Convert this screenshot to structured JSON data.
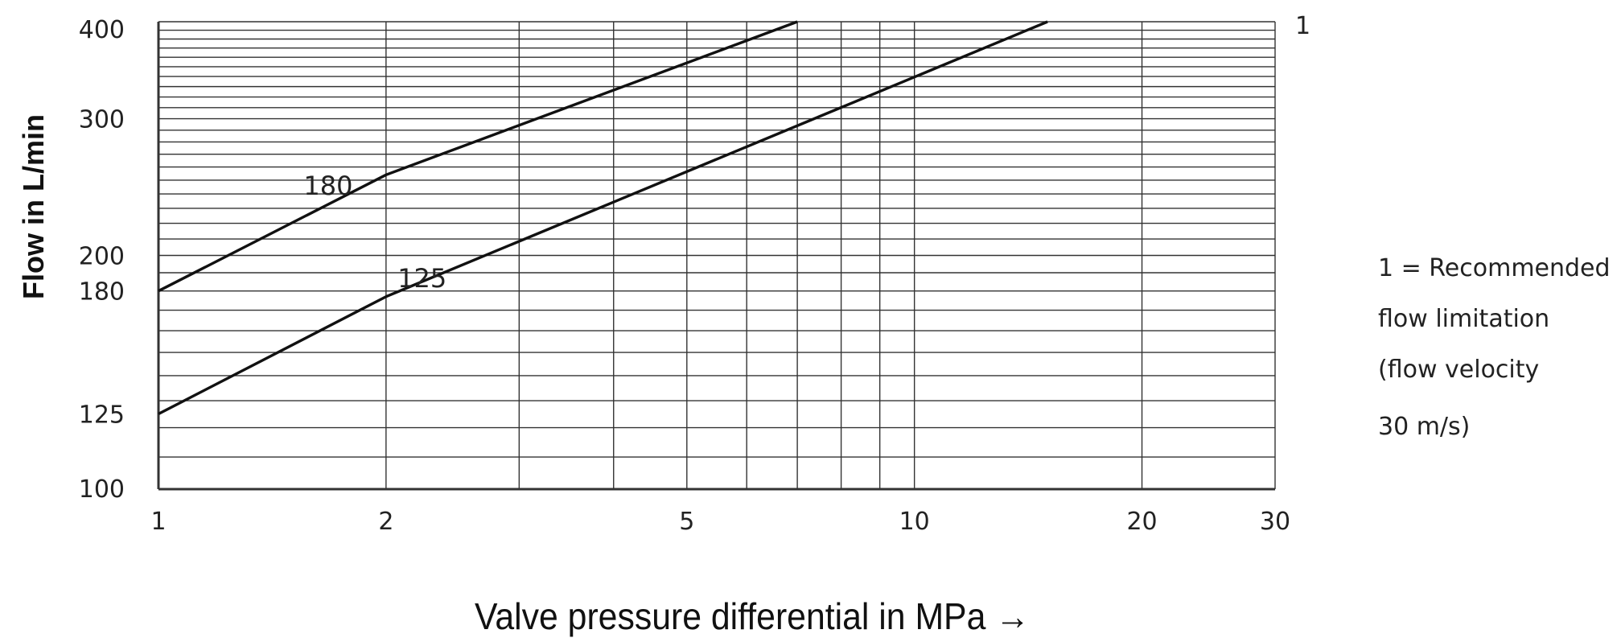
{
  "chart_data": {
    "type": "line",
    "title": "",
    "xlabel": "Valve pressure differential in MPa →",
    "ylabel": "Flow in  L/min",
    "x_scale": "log",
    "y_scale": "log",
    "xlim": [
      1,
      30
    ],
    "ylim": [
      100,
      400
    ],
    "x_ticks": [
      1,
      2,
      5,
      10,
      20,
      30
    ],
    "x_tick_labels": [
      "1",
      "2",
      "5",
      "10",
      "20",
      "30"
    ],
    "y_ticks": [
      100,
      125,
      180,
      200,
      300,
      400
    ],
    "y_tick_labels": [
      "100",
      "125",
      "180",
      "200",
      "300",
      "400"
    ],
    "x_grid": [
      1,
      2,
      3,
      4,
      5,
      6,
      7,
      8,
      9,
      10,
      20,
      30
    ],
    "y_grid": [
      100,
      110,
      120,
      130,
      140,
      150,
      160,
      170,
      180,
      190,
      200,
      210,
      220,
      230,
      240,
      250,
      260,
      270,
      280,
      290,
      300,
      310,
      320,
      330,
      340,
      350,
      360,
      370,
      380,
      390,
      400
    ],
    "grid": true,
    "series": [
      {
        "name": "180",
        "x": [
          1,
          2,
          7
        ],
        "y": [
          180,
          254,
          400
        ]
      },
      {
        "name": "125",
        "x": [
          1,
          2,
          15
        ],
        "y": [
          125,
          177,
          400
        ]
      }
    ],
    "annotations": {
      "limit_marker": "1",
      "note_lines": [
        "1  =  Recommended",
        "flow  limitation",
        "(flow  velocity",
        "30  m/s)"
      ]
    }
  },
  "colors": {
    "line": "#111111",
    "grid": "#333333",
    "text": "#222222"
  }
}
